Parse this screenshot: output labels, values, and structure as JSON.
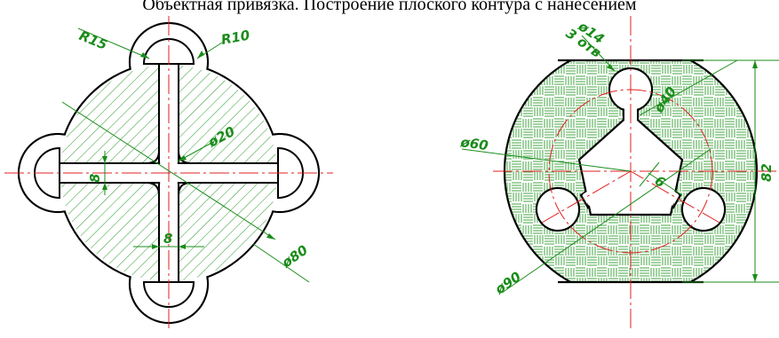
{
  "header": {
    "caption": "Объектная привязка. Построение плоского контура с нанесением"
  },
  "left_drawing": {
    "dims": {
      "r15": "R15",
      "r10": "R10",
      "d20": "ø20",
      "d80": "ø80",
      "slot_v": "8",
      "slot_h": "8"
    }
  },
  "right_drawing": {
    "dims": {
      "d14": "ø14",
      "holes": "3 отв",
      "d40": "ø40",
      "d60": "ø60",
      "d90": "ø90",
      "w6": "6",
      "h82": "82"
    }
  },
  "colors": {
    "outline": "#000000",
    "dimension": "#1a8c1a",
    "hatch": "#2e9a2e",
    "axis": "#e02020",
    "fill": "#ffffff"
  }
}
